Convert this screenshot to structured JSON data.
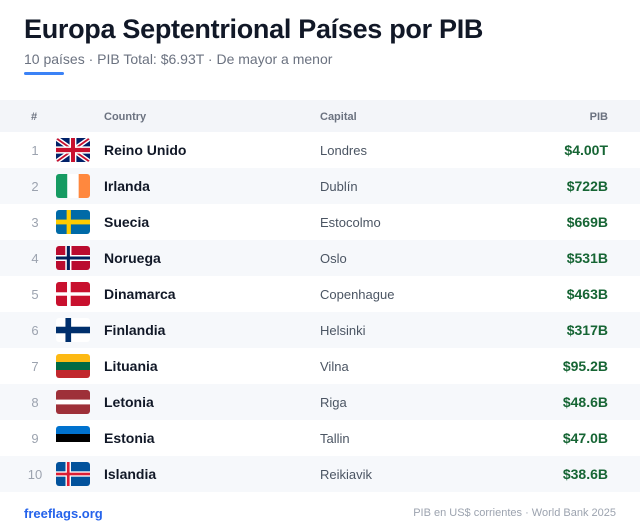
{
  "header": {
    "title": "Europa Septentrional Países por PIB",
    "subtitle": "10 países · PIB Total: $6.93T · De mayor a menor"
  },
  "table": {
    "columns": {
      "num": "#",
      "country": "Country",
      "capital": "Capital",
      "pib": "PIB"
    },
    "rows": [
      {
        "rank": "1",
        "flag": "uk-flag-icon",
        "country": "Reino Unido",
        "capital": "Londres",
        "pib": "$4.00T"
      },
      {
        "rank": "2",
        "flag": "ireland-flag-icon",
        "country": "Irlanda",
        "capital": "Dublín",
        "pib": "$722B"
      },
      {
        "rank": "3",
        "flag": "sweden-flag-icon",
        "country": "Suecia",
        "capital": "Estocolmo",
        "pib": "$669B"
      },
      {
        "rank": "4",
        "flag": "norway-flag-icon",
        "country": "Noruega",
        "capital": "Oslo",
        "pib": "$531B"
      },
      {
        "rank": "5",
        "flag": "denmark-flag-icon",
        "country": "Dinamarca",
        "capital": "Copenhague",
        "pib": "$463B"
      },
      {
        "rank": "6",
        "flag": "finland-flag-icon",
        "country": "Finlandia",
        "capital": "Helsinki",
        "pib": "$317B"
      },
      {
        "rank": "7",
        "flag": "lithuania-flag-icon",
        "country": "Lituania",
        "capital": "Vilna",
        "pib": "$95.2B"
      },
      {
        "rank": "8",
        "flag": "latvia-flag-icon",
        "country": "Letonia",
        "capital": "Riga",
        "pib": "$48.6B"
      },
      {
        "rank": "9",
        "flag": "estonia-flag-icon",
        "country": "Estonia",
        "capital": "Tallin",
        "pib": "$47.0B"
      },
      {
        "rank": "10",
        "flag": "iceland-flag-icon",
        "country": "Islandia",
        "capital": "Reikiavik",
        "pib": "$38.6B"
      }
    ]
  },
  "footer": {
    "brand": "freeflags.org",
    "source": "PIB en US$ corrientes · World Bank 2025"
  },
  "colors": {
    "accent": "#3b82f6",
    "pib_text": "#166534",
    "brand": "#2563eb"
  }
}
